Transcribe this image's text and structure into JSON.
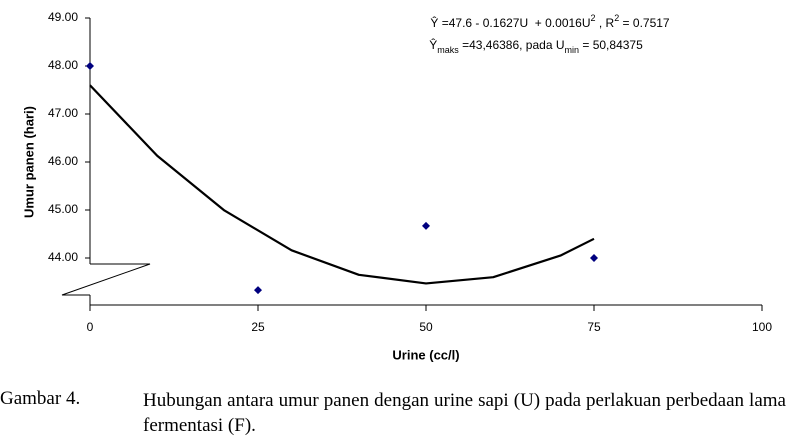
{
  "chart_data": {
    "type": "scatter",
    "y_label": "Umur panen (hari)",
    "x_label": "Urine (cc/l)",
    "xlim": [
      0,
      100
    ],
    "xticks": [
      0,
      25,
      50,
      75,
      100
    ],
    "ylim": [
      43,
      49
    ],
    "yticks": [
      {
        "value": 44,
        "label": "44.00"
      },
      {
        "value": 45,
        "label": "45.00"
      },
      {
        "value": 46,
        "label": "46.00"
      },
      {
        "value": 47,
        "label": "47.00"
      },
      {
        "value": 48,
        "label": "48.00"
      },
      {
        "value": 49,
        "label": "49.00"
      }
    ],
    "points": {
      "x": [
        0,
        25,
        50,
        75
      ],
      "values": [
        48,
        43.33,
        44.67,
        44
      ],
      "color": "#00007f"
    },
    "fit": {
      "x": [
        0,
        10,
        20,
        30,
        40,
        50,
        60,
        70,
        75
      ],
      "values": [
        47.6,
        46.13,
        44.99,
        44.16,
        43.65,
        43.47,
        43.6,
        44.05,
        44.4
      ],
      "color": "#000000"
    },
    "annotations": [
      {
        "parts": [
          {
            "text": "Ŷ =47.6 - 0.1627U  + 0.0016U"
          },
          {
            "text": "2",
            "shift": "super"
          },
          {
            "text": " , R"
          },
          {
            "text": "2",
            "shift": "super"
          },
          {
            "text": " = 0.7517"
          }
        ]
      },
      {
        "parts": [
          {
            "text": "Ŷ"
          },
          {
            "text": "maks",
            "shift": "sub"
          },
          {
            "text": " =43,46386, pada U"
          },
          {
            "text": "min",
            "shift": "sub"
          },
          {
            "text": " = 50,84375"
          }
        ]
      }
    ]
  },
  "caption": {
    "label": "Gambar 4.",
    "text": "Hubungan antara umur panen dengan urine sapi (U) pada perlakuan perbedaan lama fermentasi (F)."
  }
}
